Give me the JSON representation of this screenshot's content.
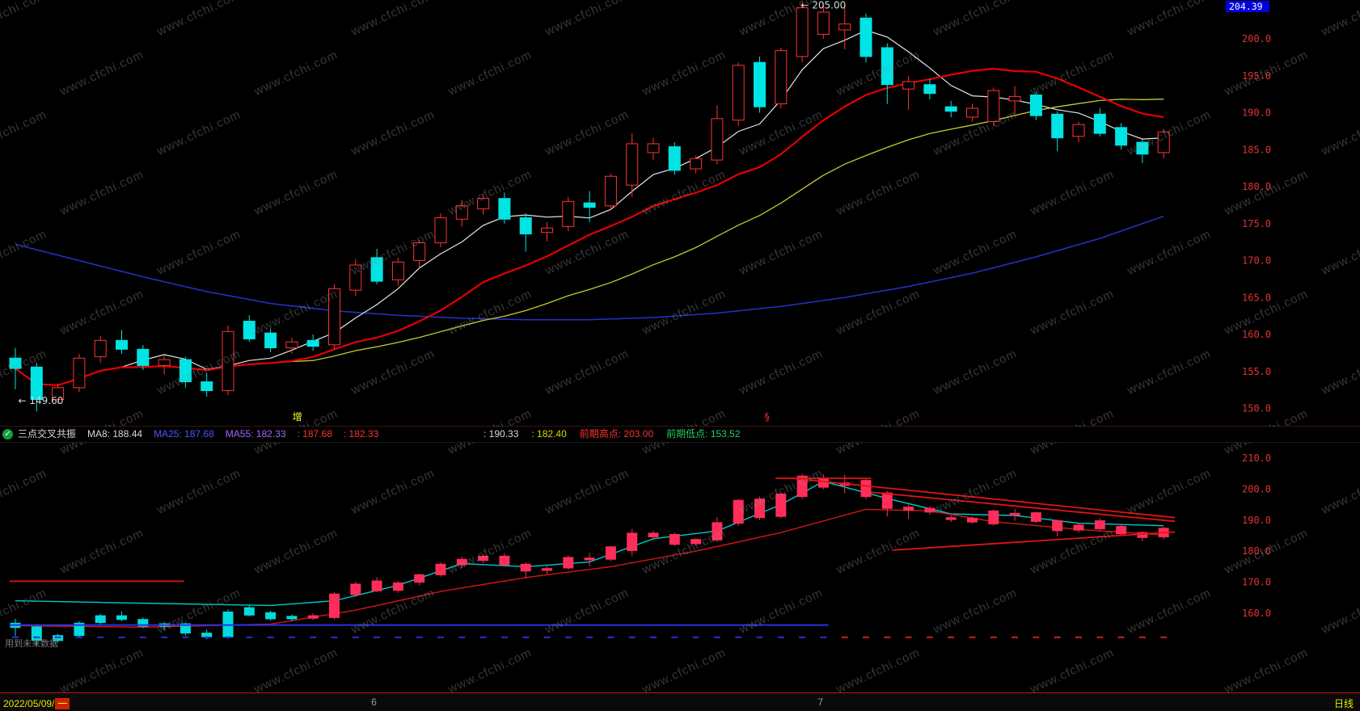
{
  "app": {
    "watermark_text": "www.cfchi.com",
    "background": "#000000"
  },
  "status_bar": {
    "icon": "check-circle-icon",
    "left_items": [
      {
        "text": "三点交叉共振",
        "color": "#d8d8d8",
        "name": "indicator-name",
        "interactable": true
      },
      {
        "text": "MA8: 188.44",
        "color": "#d8d8d8",
        "name": "ma8-value",
        "interactable": false
      },
      {
        "text": "MA25: 187.68",
        "color": "#5252ff",
        "name": "ma25-value",
        "interactable": false
      },
      {
        "text": "MA55: 182.33",
        "color": "#9a6aff",
        "name": "ma55-value",
        "interactable": false
      },
      {
        "text": ": 187.68",
        "color": "#ff3232",
        "name": "indicator-value-1",
        "interactable": false
      },
      {
        "text": ": 182.33",
        "color": "#ff3232",
        "name": "indicator-value-2",
        "interactable": false
      }
    ],
    "right_items": [
      {
        "text": ": 190.33",
        "color": "#d8d8d8",
        "name": "indicator-value-3",
        "interactable": false
      },
      {
        "text": ": 182.40",
        "color": "#d8d800",
        "name": "indicator-value-4",
        "interactable": false
      },
      {
        "text": "前期高点: 203.00",
        "color": "#ff3232",
        "name": "previous-high-value",
        "interactable": false
      },
      {
        "text": "前期低点: 153.52",
        "color": "#21cc63",
        "name": "previous-low-value",
        "interactable": false
      }
    ]
  },
  "axis_bar": {
    "date": "2022/05/09/",
    "weekday": "一",
    "period": "日线",
    "months": [
      {
        "label": "6",
        "index": 17
      },
      {
        "label": "7",
        "index": 38
      }
    ]
  },
  "chart_data": {
    "type": "candlestick",
    "start_date": "2022/05/09",
    "periodicity": "daily",
    "candles_ohlc": [
      [
        156.8,
        158.2,
        152.6,
        155.4
      ],
      [
        155.6,
        156.2,
        149.6,
        151.2
      ],
      [
        151.2,
        153.4,
        150.6,
        152.8
      ],
      [
        152.8,
        157.4,
        152.2,
        156.8
      ],
      [
        157.0,
        159.8,
        156.2,
        159.2
      ],
      [
        159.2,
        160.6,
        157.4,
        158.0
      ],
      [
        158.0,
        158.6,
        155.2,
        155.8
      ],
      [
        155.8,
        157.2,
        154.6,
        156.6
      ],
      [
        156.6,
        157.0,
        152.8,
        153.6
      ],
      [
        153.6,
        154.8,
        151.6,
        152.4
      ],
      [
        152.4,
        161.2,
        151.8,
        160.4
      ],
      [
        161.8,
        162.6,
        159.0,
        159.4
      ],
      [
        160.2,
        160.8,
        157.6,
        158.2
      ],
      [
        158.2,
        159.6,
        157.4,
        159.0
      ],
      [
        159.2,
        160.0,
        157.8,
        158.4
      ],
      [
        158.6,
        166.8,
        158.0,
        166.2
      ],
      [
        166.0,
        170.2,
        165.2,
        169.4
      ],
      [
        170.4,
        171.6,
        166.8,
        167.2
      ],
      [
        167.4,
        170.4,
        166.6,
        169.8
      ],
      [
        170.0,
        172.8,
        169.0,
        172.4
      ],
      [
        172.4,
        176.4,
        171.8,
        175.8
      ],
      [
        175.6,
        178.2,
        174.6,
        177.4
      ],
      [
        177.0,
        179.0,
        176.2,
        178.4
      ],
      [
        178.4,
        179.2,
        175.0,
        175.6
      ],
      [
        175.8,
        176.4,
        171.2,
        173.6
      ],
      [
        173.8,
        175.2,
        172.6,
        174.4
      ],
      [
        174.6,
        178.6,
        174.0,
        178.0
      ],
      [
        177.8,
        179.4,
        175.2,
        177.2
      ],
      [
        177.4,
        181.8,
        176.8,
        181.4
      ],
      [
        180.2,
        187.2,
        178.6,
        185.8
      ],
      [
        184.6,
        186.6,
        183.6,
        185.8
      ],
      [
        185.4,
        186.0,
        181.6,
        182.2
      ],
      [
        182.4,
        184.2,
        181.8,
        183.8
      ],
      [
        183.6,
        191.0,
        183.0,
        189.2
      ],
      [
        189.0,
        196.8,
        188.2,
        196.4
      ],
      [
        196.8,
        197.6,
        190.0,
        190.8
      ],
      [
        191.2,
        198.8,
        190.6,
        198.4
      ],
      [
        197.6,
        205.0,
        196.8,
        204.2
      ],
      [
        200.6,
        204.8,
        200.0,
        203.6
      ],
      [
        201.2,
        204.6,
        198.6,
        202.0
      ],
      [
        202.8,
        203.4,
        196.8,
        197.6
      ],
      [
        198.8,
        199.4,
        191.2,
        193.8
      ],
      [
        193.2,
        195.0,
        190.4,
        194.2
      ],
      [
        193.8,
        194.6,
        191.8,
        192.6
      ],
      [
        190.8,
        191.6,
        189.4,
        190.2
      ],
      [
        189.4,
        191.2,
        188.8,
        190.6
      ],
      [
        188.8,
        193.4,
        188.2,
        193.0
      ],
      [
        191.6,
        193.6,
        189.8,
        192.2
      ],
      [
        192.4,
        192.8,
        189.0,
        189.6
      ],
      [
        189.8,
        190.2,
        184.8,
        186.6
      ],
      [
        186.8,
        188.8,
        186.0,
        188.4
      ],
      [
        189.8,
        190.6,
        186.8,
        187.2
      ],
      [
        188.0,
        188.6,
        185.0,
        185.6
      ],
      [
        186.0,
        186.4,
        183.2,
        184.4
      ],
      [
        184.6,
        187.8,
        183.8,
        187.4
      ]
    ],
    "top_panel": {
      "name": "price-panel",
      "ylim": [
        148,
        206
      ],
      "y_ticks": [
        200,
        195,
        190,
        185,
        180,
        175,
        170,
        165,
        160,
        155,
        150
      ],
      "axis_color": "#e03333",
      "price_marker": "204.39",
      "price_marker_bg": "#0000dd",
      "up_color": "#ff3232",
      "down_color": "#00e4e4",
      "ma_lines": [
        {
          "name": "white",
          "window": 5,
          "color": "#e6e6e6",
          "width": 1.2
        },
        {
          "name": "yellow",
          "window": 24,
          "color": "#c8c832",
          "width": 1.3
        },
        {
          "name": "red",
          "window": 13,
          "color": "#e60000",
          "width": 2.2
        }
      ],
      "blue_ma": {
        "color": "#2830cc",
        "width": 1.5,
        "points": [
          [
            0,
            172.2
          ],
          [
            3,
            170.0
          ],
          [
            6,
            167.8
          ],
          [
            9,
            165.8
          ],
          [
            12,
            164.2
          ],
          [
            15,
            163.2
          ],
          [
            18,
            162.6
          ],
          [
            21,
            162.2
          ],
          [
            24,
            162.0
          ],
          [
            27,
            162.0
          ],
          [
            30,
            162.3
          ],
          [
            33,
            162.9
          ],
          [
            36,
            163.8
          ],
          [
            39,
            165.0
          ],
          [
            42,
            166.5
          ],
          [
            45,
            168.3
          ],
          [
            48,
            170.5
          ],
          [
            51,
            173.0
          ],
          [
            54,
            176.0
          ]
        ]
      },
      "annotations": [
        {
          "text": "← 205.00",
          "index": 37.2,
          "price": 204.1,
          "color": "#d8d8d8"
        },
        {
          "text": "← 149.60",
          "index": 0.4,
          "price": 150.6,
          "color": "#d8d8d8"
        },
        {
          "text": "增",
          "index": 13.3,
          "price": 148.4,
          "color": "#ffff33"
        },
        {
          "text": "§",
          "index": 35.5,
          "price": 148.4,
          "color": "#ff3232"
        }
      ]
    },
    "bottom_panel": {
      "name": "indicator-panel",
      "indicator_name": "三点交叉共振",
      "ylim": [
        148,
        212
      ],
      "y_ticks": [
        210,
        200,
        190,
        180,
        170,
        160
      ],
      "axis_color": "#e03333",
      "cyan_color": "#00dcdc",
      "bull_color": "#ff2d5a",
      "cyan_candle_last_index": 13,
      "cyan_line": {
        "color": "#00c8c8",
        "width": 1.4,
        "points": [
          [
            0,
            164.0
          ],
          [
            4,
            163.5
          ],
          [
            8,
            163.0
          ],
          [
            12,
            162.5
          ],
          [
            15,
            164.0
          ],
          [
            18,
            169.0
          ],
          [
            21,
            176.0
          ],
          [
            24,
            175.0
          ],
          [
            27,
            176.5
          ],
          [
            30,
            184.0
          ],
          [
            33,
            186.5
          ],
          [
            36,
            195.0
          ],
          [
            38,
            202.5
          ],
          [
            41,
            197.0
          ],
          [
            44,
            192.0
          ],
          [
            47,
            191.5
          ],
          [
            50,
            189.0
          ],
          [
            54,
            188.2
          ]
        ]
      },
      "red_line": {
        "color": "#d41616",
        "width": 1.4,
        "points": [
          [
            0,
            156.0
          ],
          [
            6,
            155.5
          ],
          [
            12,
            156.5
          ],
          [
            16,
            161.0
          ],
          [
            20,
            167.0
          ],
          [
            24,
            171.5
          ],
          [
            28,
            175.0
          ],
          [
            32,
            180.0
          ],
          [
            36,
            186.0
          ],
          [
            40,
            193.5
          ],
          [
            43,
            193.0
          ],
          [
            46,
            189.5
          ],
          [
            50,
            187.0
          ],
          [
            54,
            185.2
          ]
        ]
      },
      "trend_lines": {
        "color": "#e01414",
        "width": 1.8,
        "segments": [
          [
            [
              36.0,
              203.5
            ],
            [
              40.5,
              203.5
            ]
          ],
          [
            [
              36.8,
              203.5
            ],
            [
              54.8,
              190.8
            ]
          ],
          [
            [
              40.5,
              199.0
            ],
            [
              54.8,
              189.6
            ]
          ],
          [
            [
              41.5,
              180.3
            ],
            [
              54.8,
              186.2
            ]
          ],
          [
            [
              0,
              170.3
            ],
            [
              8.2,
              170.3
            ]
          ]
        ]
      },
      "baseline": {
        "color": "#2832e6",
        "width": 2,
        "points": [
          [
            0,
            156.2
          ],
          [
            38.5,
            156.2
          ]
        ]
      },
      "signal_ticks": {
        "price": 152.5,
        "blue_color": "#2832cc",
        "red_color": "#cc2020",
        "switch_index": 39
      },
      "warning_text": "用到未来数据"
    }
  }
}
